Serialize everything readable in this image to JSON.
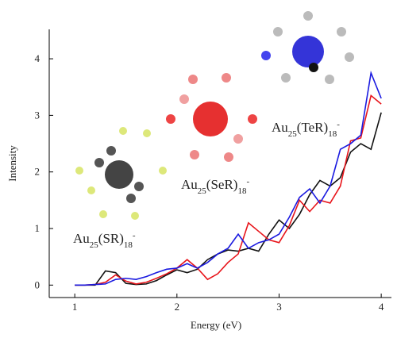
{
  "chart_data": {
    "type": "line",
    "x_label": "Energy (eV)",
    "y_label": "Intensity",
    "x": [
      1.0,
      1.1,
      1.2,
      1.3,
      1.4,
      1.5,
      1.6,
      1.7,
      1.8,
      1.9,
      2.0,
      2.1,
      2.2,
      2.3,
      2.4,
      2.5,
      2.6,
      2.7,
      2.8,
      2.9,
      3.0,
      3.1,
      3.2,
      3.3,
      3.4,
      3.5,
      3.6,
      3.7,
      3.8,
      3.9,
      4.0
    ],
    "series": [
      {
        "color": "#111111",
        "values": [
          0,
          0,
          0,
          0.25,
          0.22,
          0.03,
          0.01,
          0.02,
          0.08,
          0.18,
          0.27,
          0.22,
          0.28,
          0.45,
          0.55,
          0.62,
          0.6,
          0.65,
          0.6,
          0.9,
          1.15,
          1.0,
          1.25,
          1.6,
          1.85,
          1.75,
          1.9,
          2.35,
          2.5,
          2.4,
          3.05
        ]
      },
      {
        "color": "#e8141a",
        "values": [
          0,
          0,
          0.01,
          0.05,
          0.18,
          0.07,
          0.02,
          0.05,
          0.12,
          0.2,
          0.3,
          0.45,
          0.3,
          0.1,
          0.2,
          0.4,
          0.55,
          1.1,
          0.95,
          0.8,
          0.75,
          1.05,
          1.5,
          1.3,
          1.5,
          1.45,
          1.75,
          2.55,
          2.6,
          3.35,
          3.2
        ]
      },
      {
        "color": "#1a1ae0",
        "values": [
          0,
          0,
          0.01,
          0.02,
          0.1,
          0.12,
          0.1,
          0.15,
          0.22,
          0.28,
          0.3,
          0.38,
          0.3,
          0.4,
          0.55,
          0.65,
          0.9,
          0.65,
          0.75,
          0.8,
          0.9,
          1.2,
          1.55,
          1.7,
          1.45,
          1.75,
          2.4,
          2.5,
          2.65,
          3.75,
          3.3
        ]
      }
    ],
    "xlim": [
      0.75,
      4.1
    ],
    "ylim": [
      -0.22,
      4.52
    ],
    "xticks": [
      1,
      2,
      3,
      4
    ],
    "yticks": [
      0,
      1,
      2,
      3,
      4
    ],
    "annotations": [
      {
        "parts": [
          {
            "text": "Au"
          },
          {
            "text": "25",
            "style": "sub"
          },
          {
            "text": "(SR)"
          },
          {
            "text": "18",
            "style": "sub"
          },
          {
            "text": "-",
            "style": "sup"
          }
        ]
      },
      {
        "parts": [
          {
            "text": "Au"
          },
          {
            "text": "25",
            "style": "sub"
          },
          {
            "text": "(SeR)"
          },
          {
            "text": "18",
            "style": "sub"
          },
          {
            "text": "-",
            "style": "sup"
          }
        ]
      },
      {
        "parts": [
          {
            "text": "Au"
          },
          {
            "text": "25",
            "style": "sub"
          },
          {
            "text": "(TeR)"
          },
          {
            "text": "18",
            "style": "sub"
          },
          {
            "text": "-",
            "style": "sup"
          }
        ]
      }
    ]
  }
}
